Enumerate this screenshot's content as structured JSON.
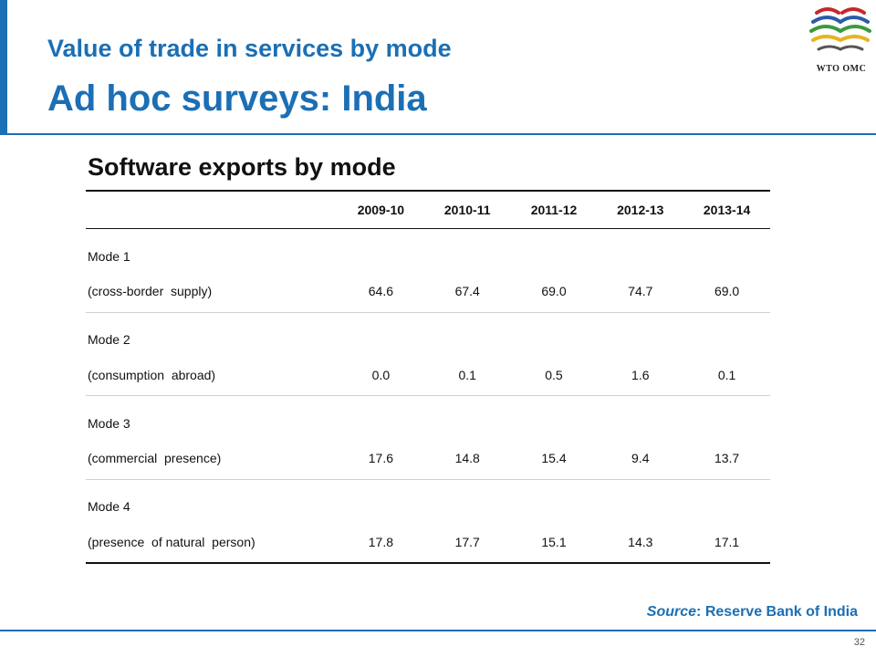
{
  "slide": {
    "title_line1": "Value of trade in services by mode",
    "title_line2": "Ad hoc surveys: India",
    "logo_text": "WTO OMC",
    "subtitle": "Software exports by mode",
    "page_number": "32",
    "accent_color": "#1b6fb5"
  },
  "table": {
    "columns": [
      "",
      "2009-10",
      "2010-11",
      "2011-12",
      "2012-13",
      "2013-14"
    ],
    "rows": [
      {
        "mode": "Mode 1",
        "desc": "(cross-border  supply)",
        "values": [
          "64.6",
          "67.4",
          "69.0",
          "74.7",
          "69.0"
        ]
      },
      {
        "mode": "Mode 2",
        "desc": "(consumption  abroad)",
        "values": [
          "0.0",
          "0.1",
          "0.5",
          "1.6",
          "0.1"
        ]
      },
      {
        "mode": "Mode 3",
        "desc": "(commercial  presence)",
        "values": [
          "17.6",
          "14.8",
          "15.4",
          "9.4",
          "13.7"
        ]
      },
      {
        "mode": "Mode 4",
        "desc": "(presence  of natural  person)",
        "values": [
          "17.8",
          "17.7",
          "15.1",
          "14.3",
          "17.1"
        ]
      }
    ]
  },
  "source": {
    "label": "Source",
    "text": ": Reserve Bank of India"
  }
}
